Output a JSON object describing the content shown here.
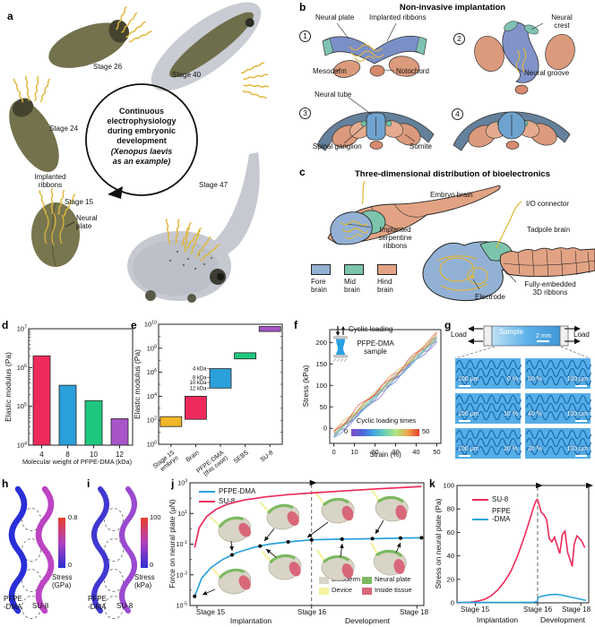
{
  "colors": {
    "pfpe_blue": "#29a3dc",
    "su8_pink": "#ee2a5b",
    "ribbon_yellow": "#e0b83c",
    "embryo_olive": "#73724d",
    "tadpole_gray": "#c6c9d0",
    "tile_blue": "#55aee6",
    "tile_line": "#1a6ab0"
  },
  "panel_a": {
    "label": "a",
    "stage24": "Stage 24",
    "stage26": "Stage 26",
    "stage40": "Stage 40",
    "stage47": "Stage 47",
    "stage15": "Stage 15",
    "implanted_ribbons": "Implanted\nribbons",
    "neural_plate": "Neural\nplate",
    "center_bold": "Continuous\nelectrophysiology\nduring embryonic\ndevelopment",
    "center_italic": "(Xenopus laevis\nas an example)"
  },
  "panel_b": {
    "label": "b",
    "title": "Non-invasive implantation",
    "num1": "1",
    "num2": "2",
    "num3": "3",
    "num4": "4",
    "neural_plate": "Neural plate",
    "implanted_ribbons": "Implanted ribbons",
    "mesoderm": "Mesoderm",
    "notochord": "Notochord",
    "neural_crest": "Neural\ncrest",
    "neural_groove": "Neural groove",
    "neural_tube": "Neural tube",
    "spinal_ganglion": "Spinal ganglion",
    "somite": "Somite"
  },
  "panel_c": {
    "label": "c",
    "title": "Three-dimensional distribution of bioelectronics",
    "embryo_brain": "Embryo brain",
    "io_connector": "I/O connector",
    "implanted_serpentine_ribbons": "Implanted\nserpentine\nribbons",
    "tadpole_brain": "Tadpole brain",
    "electrode": "Electrode",
    "fully_embedded": "Fully-embedded\n3D ribbons",
    "legend": [
      {
        "label": "Fore\nbrain",
        "color": "#93b1d4"
      },
      {
        "label": "Mid\nbrain",
        "color": "#7cc4ab"
      },
      {
        "label": "Hind\nbrain",
        "color": "#e2a384"
      }
    ]
  },
  "panel_g": {
    "label": "g",
    "load_left": "Load",
    "load_right": "Load",
    "sample": "Sample",
    "scale": "2 mm",
    "tiles": [
      {
        "left": "100 μm",
        "right": "0 %",
        "bar_side": "left"
      },
      {
        "left": "50 %",
        "right": "100 μm",
        "bar_side": "right"
      },
      {
        "left": "100 μm",
        "right": "10 %",
        "bar_side": "left"
      },
      {
        "left": "40 %",
        "right": "100 μm",
        "bar_side": "right"
      },
      {
        "left": "100 μm",
        "right": "20 %",
        "bar_side": "left"
      },
      {
        "left": "30 %",
        "right": "100 μm",
        "bar_side": "right"
      }
    ]
  },
  "panel_h": {
    "label": "h",
    "scale_max": "0.8",
    "scale_min": "0",
    "scale_label": "Stress\n(GPa)",
    "mat1": "PFPE\n-DMA",
    "mat2": "SU-8",
    "scale_colors": [
      "#e8402a",
      "#b040c0",
      "#2a2ed4"
    ]
  },
  "panel_i": {
    "label": "i",
    "scale_max": "100",
    "scale_min": "0",
    "scale_label": "Stress\n(kPa)",
    "mat1": "PFPE\n-DMA",
    "mat2": "SU-8",
    "scale_colors": [
      "#e8402a",
      "#b040c0",
      "#2a2ed4"
    ]
  },
  "chart_data": [
    {
      "id": "d",
      "panel_label": "d",
      "type": "bar",
      "yscale": "log",
      "ylabel": "Elastic modulus (Pa)",
      "xlabel": "Molecular weight of PFPE-DMA (kDa)",
      "categories": [
        "4",
        "8",
        "10",
        "12"
      ],
      "values": [
        2000000,
        350000,
        140000,
        48000
      ],
      "bar_colors": [
        "#ee2a5b",
        "#2b9fd9",
        "#1fc77e",
        "#a855c8"
      ],
      "ylim_exponents": [
        4,
        7
      ],
      "ytick_exponents": [
        4,
        5,
        6,
        7
      ]
    },
    {
      "id": "e",
      "panel_label": "e",
      "type": "bar",
      "subtype": "floating-range",
      "yscale": "log",
      "ylabel": "Elastic modulus (Pa)",
      "categories": [
        "Stage 15\nembryo",
        "Brain",
        "PFPE-DMA\n(this case)",
        "SEBS",
        "SU-8"
      ],
      "ranges": [
        [
          30,
          200
        ],
        [
          120,
          10000
        ],
        [
          48000,
          2000000
        ],
        [
          13000000,
          42000000
        ],
        [
          2500000000,
          6500000000
        ]
      ],
      "bar_colors": [
        "#f0b62a",
        "#ee2a5b",
        "#2b9fd9",
        "#1fc77e",
        "#a855c8"
      ],
      "ylim_exponents": [
        0,
        10
      ],
      "ytick_exponents": [
        0,
        2,
        4,
        6,
        8,
        10
      ],
      "annotations": [
        {
          "text": "4 kDa",
          "value": 2000000
        },
        {
          "text": "8 kDa",
          "value": 350000
        },
        {
          "text": "10 kDa",
          "value": 140000
        },
        {
          "text": "12 kDa",
          "value": 48000
        }
      ],
      "annotation_category": 2
    },
    {
      "id": "f",
      "panel_label": "f",
      "type": "line",
      "xlabel": "Strain (%)",
      "ylabel": "Stress (kPa)",
      "xticks": [
        0,
        10,
        20,
        30,
        40,
        50
      ],
      "yticks": [
        0,
        50,
        100,
        150,
        200
      ],
      "xlim": [
        0,
        50
      ],
      "ylim": [
        -35,
        230
      ],
      "n_curves": 12,
      "trend": {
        "x": [
          0,
          50
        ],
        "y": [
          -15,
          212
        ]
      },
      "inset": {
        "cyclic_loading": "Cyclic loading",
        "sample_label": "PFPE-DMA\nsample"
      },
      "colorbar": {
        "label": "Cyclic loading times",
        "min": "0",
        "max": "50",
        "stops": [
          "#7a50c6",
          "#4f64dc",
          "#42a8e0",
          "#6fd0b2",
          "#b2e37e",
          "#f0a24e",
          "#e8402a"
        ]
      }
    },
    {
      "id": "j",
      "panel_label": "j",
      "type": "line",
      "yscale": "log",
      "ylabel": "Force on neural plate (μN)",
      "ylim_exponents": [
        -5,
        3
      ],
      "ytick_exponents": [
        -5,
        -3,
        -1,
        1,
        3
      ],
      "stage_ticks": [
        "Stage 15",
        "Stage 16",
        "Stage 18"
      ],
      "phase_labels": [
        "Implantation",
        "Development"
      ],
      "dashed_frac": 0.52,
      "series": [
        {
          "name": "PFPE-DMA",
          "color": "#29a3dc",
          "x_frac": [
            0.02,
            0.05,
            0.09,
            0.14,
            0.2,
            0.27,
            0.34,
            0.42,
            0.52,
            0.62,
            0.74,
            0.86,
            0.99
          ],
          "values": [
            4e-05,
            0.0006,
            0.003,
            0.01,
            0.028,
            0.06,
            0.1,
            0.14,
            0.19,
            0.21,
            0.22,
            0.24,
            0.26
          ],
          "marker_frac": [
            0.02,
            0.18,
            0.3,
            0.42,
            0.52,
            0.65,
            0.78,
            0.9,
            0.99
          ]
        },
        {
          "name": "SU-8",
          "color": "#ee2a5b",
          "x_frac": [
            0.02,
            0.04,
            0.07,
            0.11,
            0.16,
            0.23,
            0.32,
            0.42,
            0.52,
            0.65,
            0.8,
            0.99
          ],
          "values": [
            0.06,
            1.2,
            6,
            18,
            40,
            75,
            120,
            170,
            215,
            290,
            400,
            580
          ]
        }
      ],
      "tissue_legend": [
        {
          "label": "Ectoderm",
          "color": "#d8d4c6"
        },
        {
          "label": "Device",
          "color": "#f5f2a0"
        },
        {
          "label": "Neural plate",
          "color": "#7cb961"
        },
        {
          "label": "Inside tissue",
          "color": "#d9677a"
        }
      ]
    },
    {
      "id": "k",
      "panel_label": "k",
      "type": "line",
      "ylabel": "Stress on neural plate (Pa)",
      "yticks": [
        0,
        20,
        40,
        60,
        80,
        100
      ],
      "ylim": [
        0,
        100
      ],
      "stage_ticks": [
        "Stage 15",
        "Stage 16",
        "Stage 18"
      ],
      "phase_labels": [
        "Implantation",
        "Development"
      ],
      "dashed_frac": 0.612,
      "series": [
        {
          "name": "SU-8",
          "color": "#ee2a5b",
          "x_frac": [
            0,
            0.1,
            0.16,
            0.21,
            0.26,
            0.31,
            0.36,
            0.41,
            0.46,
            0.51,
            0.55,
            0.58,
            0.6,
            0.61,
            0.625,
            0.64,
            0.66,
            0.68,
            0.7,
            0.72,
            0.74,
            0.76,
            0.78,
            0.8,
            0.82,
            0.84,
            0.86,
            0.875,
            0.89,
            0.91,
            0.93,
            0.95,
            0.97
          ],
          "values": [
            0,
            0.5,
            1.5,
            3,
            6,
            11,
            18,
            27,
            40,
            56,
            70,
            81,
            87,
            88,
            83,
            77,
            75,
            71,
            55,
            52,
            56,
            49,
            42,
            58,
            61,
            43,
            36,
            31,
            50,
            57,
            55,
            52,
            47
          ]
        },
        {
          "name": "PFPE\n-DMA",
          "color": "#29a3dc",
          "x_frac": [
            0,
            0.45,
            0.58,
            0.61,
            0.615,
            0.65,
            0.7,
            0.75,
            0.8,
            0.86,
            0.92,
            0.98
          ],
          "values": [
            0.3,
            0.3,
            0.5,
            1,
            4.5,
            5.8,
            6.8,
            7.2,
            6.5,
            5,
            3.5,
            2
          ]
        }
      ]
    }
  ]
}
